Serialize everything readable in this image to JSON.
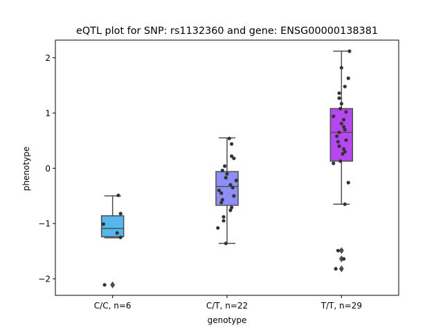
{
  "chart_data": {
    "type": "box",
    "title": "eQTL plot for SNP: rs1132360 and gene: ENSG00000138381",
    "xlabel": "genotype",
    "ylabel": "phenotype",
    "ylim": [
      -2.3,
      2.32
    ],
    "yticks": [
      {
        "value": 2,
        "label": "2"
      },
      {
        "value": 1,
        "label": "1"
      },
      {
        "value": 0,
        "label": "0"
      },
      {
        "value": -1,
        "label": "−1"
      },
      {
        "value": -2,
        "label": "−2"
      }
    ],
    "grid": false,
    "legend": "none",
    "categories": [
      {
        "label": "C/C, n=6",
        "color": "#55b7ec",
        "box": {
          "q1": -1.24,
          "median": -1.09,
          "q3": -0.86,
          "whisker_low": -1.26,
          "whisker_high": -0.5
        },
        "outliers": [
          -2.11
        ],
        "points": [
          {
            "dx": 0.05,
            "y": -0.49
          },
          {
            "dx": 0.07,
            "y": -0.82
          },
          {
            "dx": -0.08,
            "y": -1.01
          },
          {
            "dx": 0.04,
            "y": -1.17
          },
          {
            "dx": 0.07,
            "y": -1.25
          },
          {
            "dx": -0.07,
            "y": -2.11
          }
        ]
      },
      {
        "label": "C/T, n=22",
        "color": "#8e8ef8",
        "box": {
          "q1": -0.67,
          "median": -0.33,
          "q3": -0.06,
          "whisker_low": -1.36,
          "whisker_high": 0.55
        },
        "outliers": [],
        "points": [
          {
            "dx": 0.02,
            "y": 0.54
          },
          {
            "dx": 0.04,
            "y": 0.44
          },
          {
            "dx": 0.04,
            "y": 0.22
          },
          {
            "dx": 0.06,
            "y": 0.18
          },
          {
            "dx": -0.02,
            "y": 0.04
          },
          {
            "dx": -0.04,
            "y": -0.04
          },
          {
            "dx": 0.0,
            "y": -0.1
          },
          {
            "dx": -0.01,
            "y": -0.17
          },
          {
            "dx": 0.08,
            "y": -0.22
          },
          {
            "dx": 0.03,
            "y": -0.3
          },
          {
            "dx": 0.05,
            "y": -0.35
          },
          {
            "dx": -0.07,
            "y": -0.4
          },
          {
            "dx": -0.05,
            "y": -0.45
          },
          {
            "dx": 0.06,
            "y": -0.5
          },
          {
            "dx": -0.04,
            "y": -0.57
          },
          {
            "dx": -0.05,
            "y": -0.62
          },
          {
            "dx": 0.04,
            "y": -0.71
          },
          {
            "dx": 0.03,
            "y": -0.76
          },
          {
            "dx": -0.03,
            "y": -0.88
          },
          {
            "dx": -0.03,
            "y": -0.95
          },
          {
            "dx": -0.08,
            "y": -1.08
          },
          {
            "dx": -0.01,
            "y": -1.36
          }
        ]
      },
      {
        "label": "T/T, n=29",
        "color": "#b747f0",
        "box": {
          "q1": 0.13,
          "median": 0.65,
          "q3": 1.08,
          "whisker_low": -0.65,
          "whisker_high": 2.12
        },
        "outliers": [
          -1.49,
          -1.64,
          -1.82
        ],
        "points": [
          {
            "dx": 0.07,
            "y": 2.12
          },
          {
            "dx": 0.0,
            "y": 1.82
          },
          {
            "dx": 0.06,
            "y": 1.63
          },
          {
            "dx": 0.03,
            "y": 1.48
          },
          {
            "dx": -0.02,
            "y": 1.36
          },
          {
            "dx": -0.02,
            "y": 1.27
          },
          {
            "dx": 0.0,
            "y": 1.17
          },
          {
            "dx": -0.01,
            "y": 1.08
          },
          {
            "dx": 0.04,
            "y": 1.02
          },
          {
            "dx": -0.07,
            "y": 0.94
          },
          {
            "dx": 0.02,
            "y": 0.88
          },
          {
            "dx": 0.0,
            "y": 0.81
          },
          {
            "dx": 0.02,
            "y": 0.75
          },
          {
            "dx": 0.03,
            "y": 0.7
          },
          {
            "dx": -0.02,
            "y": 0.65
          },
          {
            "dx": -0.04,
            "y": 0.58
          },
          {
            "dx": 0.04,
            "y": 0.51
          },
          {
            "dx": -0.03,
            "y": 0.48
          },
          {
            "dx": -0.02,
            "y": 0.4
          },
          {
            "dx": 0.02,
            "y": 0.35
          },
          {
            "dx": 0.03,
            "y": 0.3
          },
          {
            "dx": 0.01,
            "y": 0.26
          },
          {
            "dx": -0.01,
            "y": 0.13
          },
          {
            "dx": -0.07,
            "y": 0.09
          },
          {
            "dx": 0.06,
            "y": -0.26
          },
          {
            "dx": 0.03,
            "y": -0.65
          },
          {
            "dx": -0.03,
            "y": -1.49
          },
          {
            "dx": 0.02,
            "y": -1.64
          },
          {
            "dx": -0.05,
            "y": -1.82
          }
        ]
      }
    ]
  }
}
